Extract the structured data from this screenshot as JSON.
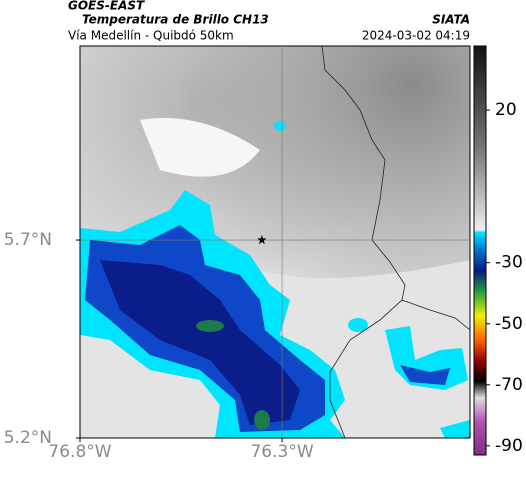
{
  "header": {
    "source": "GOES-EAST",
    "title": "Temperatura de Brillo CH13",
    "org": "SIATA",
    "subtitle": "Vía Medellín - Quibdó 50km",
    "timestamp": "2024-03-02 04:19"
  },
  "map": {
    "type": "map",
    "xlim": [
      -76.8,
      -75.835
    ],
    "ylim": [
      5.2,
      6.19
    ],
    "xticks": [
      {
        "value": -76.8,
        "label": "76.8°W"
      },
      {
        "value": -76.3,
        "label": "76.3°W"
      }
    ],
    "yticks": [
      {
        "value": 5.2,
        "label": "5.2°N"
      },
      {
        "value": 5.7,
        "label": "5.7°N"
      }
    ],
    "grid": true,
    "marker": {
      "lon": -76.35,
      "lat": 5.7
    },
    "colorbar": {
      "clim": [
        -93,
        41
      ],
      "ticks": [
        20,
        -30,
        -50,
        -70,
        -90
      ]
    }
  }
}
